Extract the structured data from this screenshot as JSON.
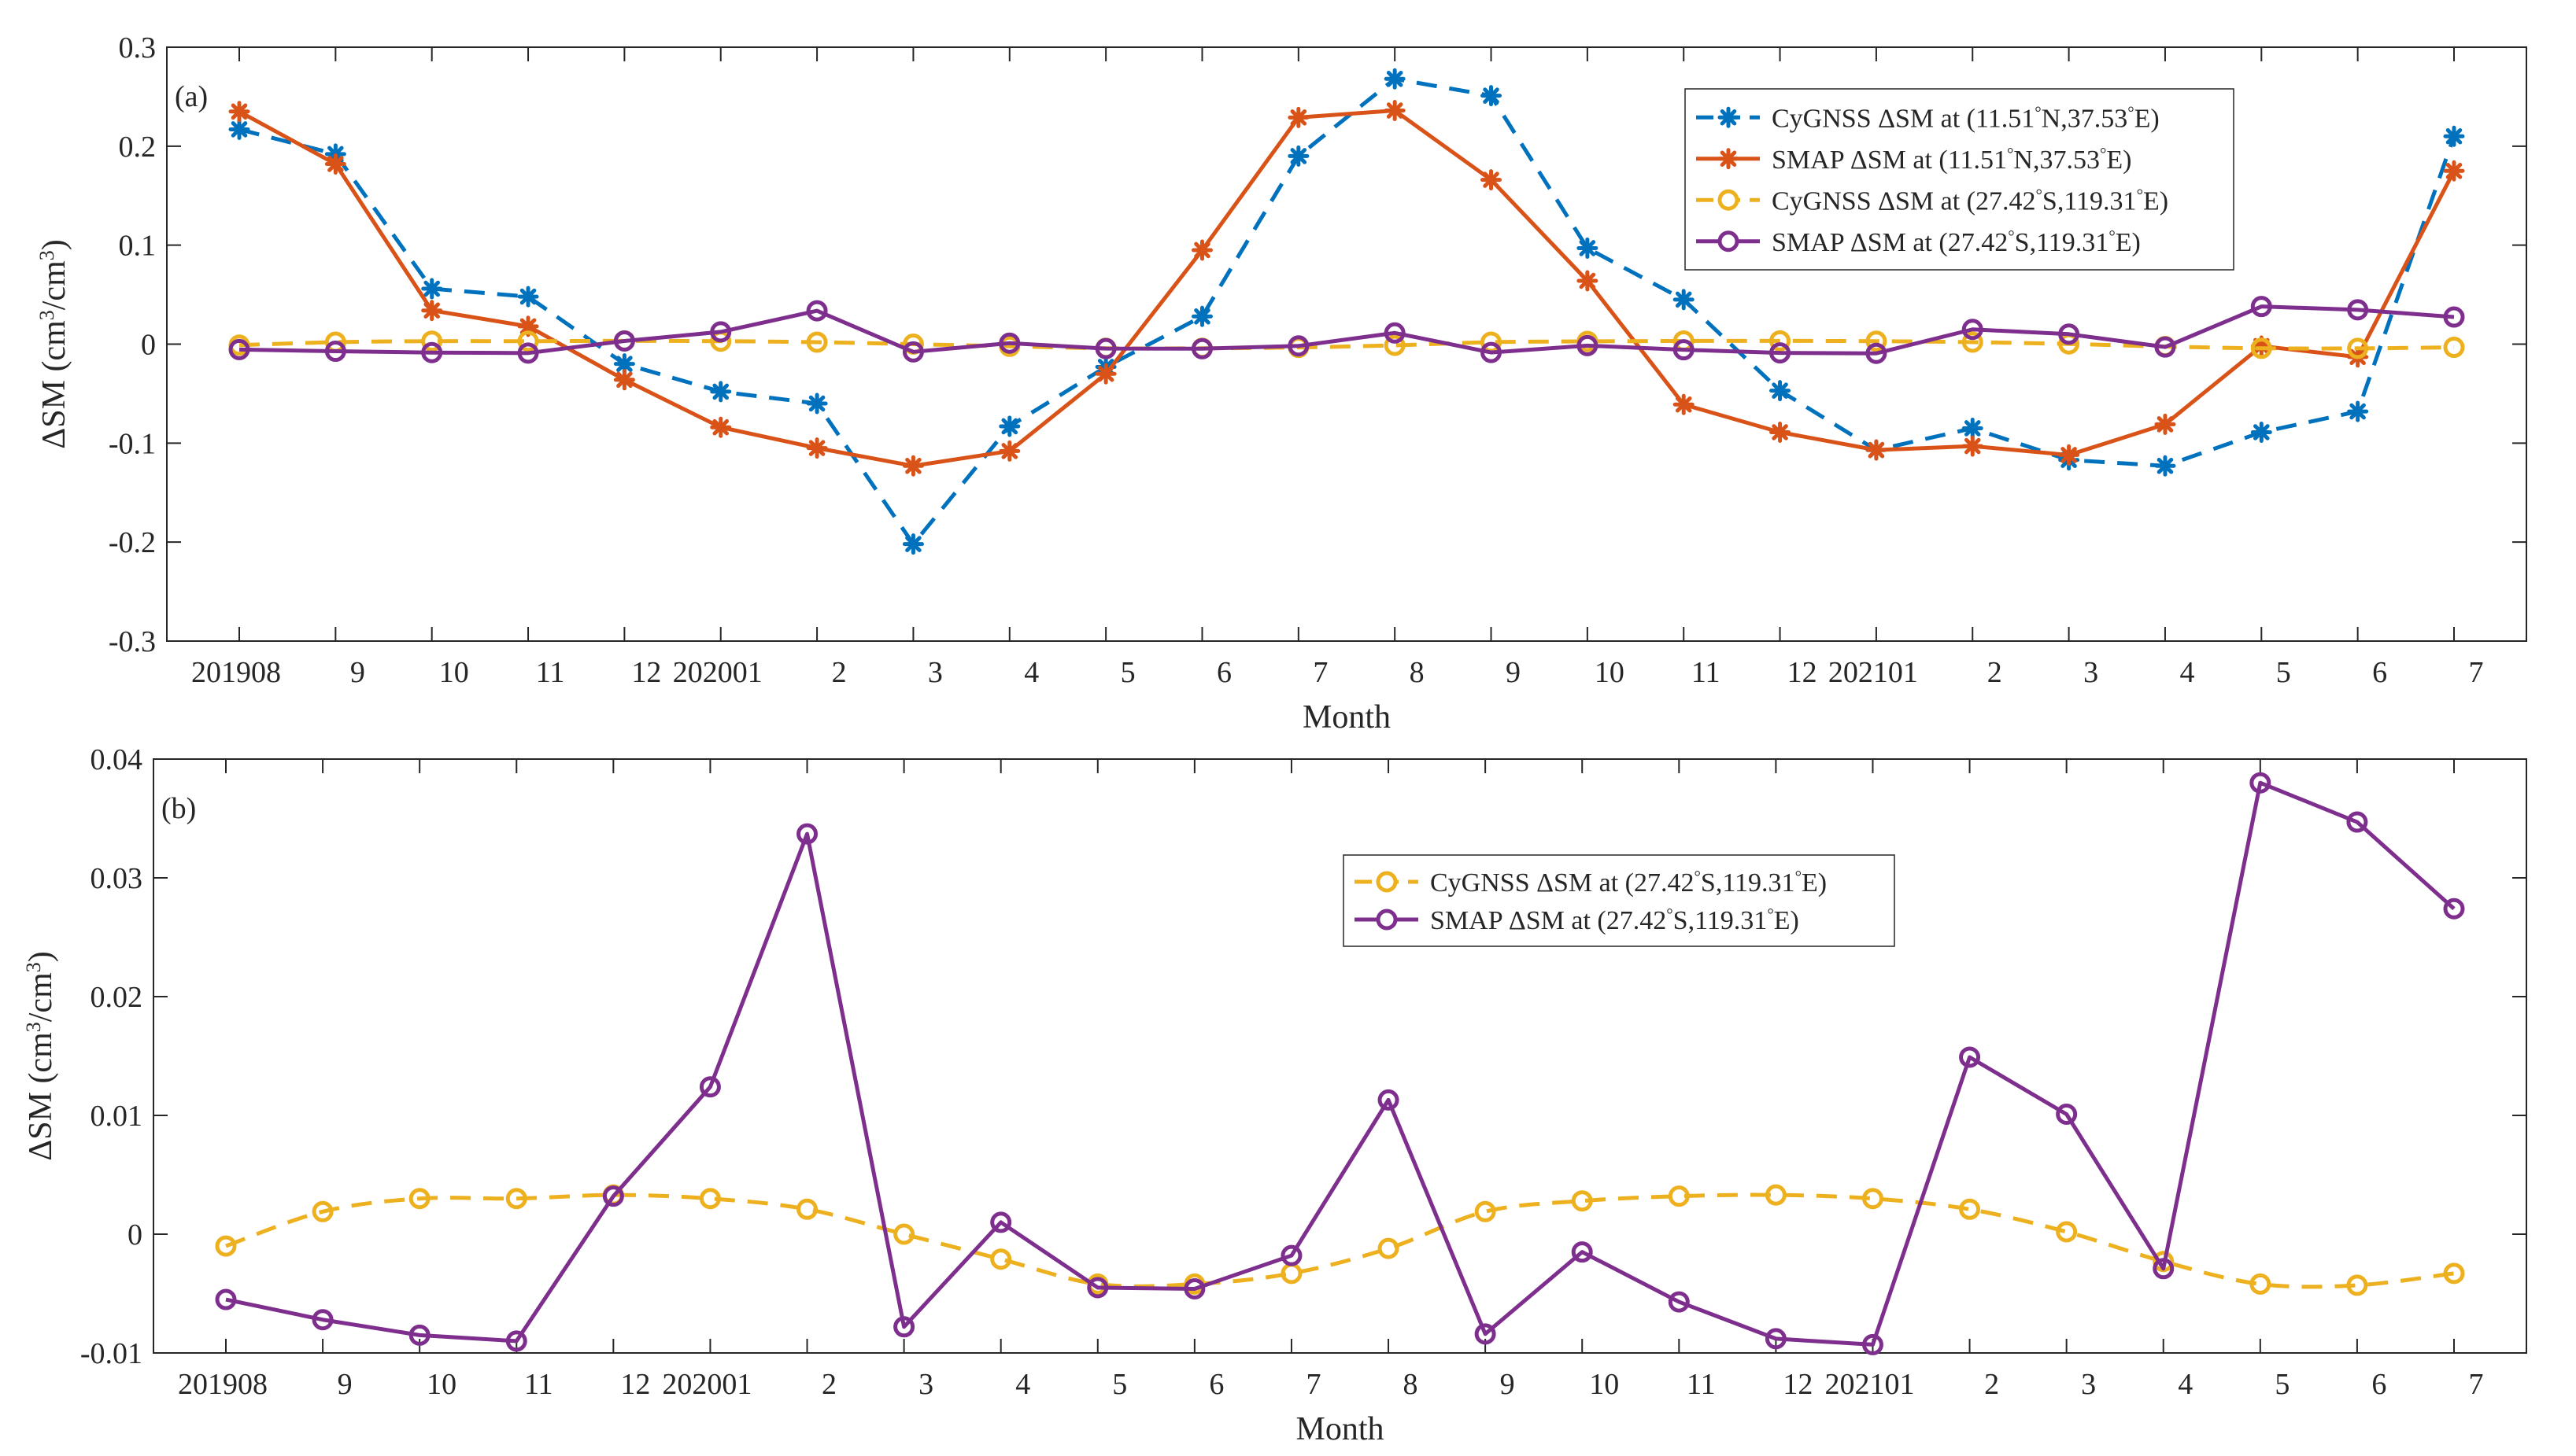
{
  "figure": {
    "xlabel": "Month",
    "ylabel_prefix": "ΔSM (cm",
    "ylabel_mid": "/cm",
    "ylabel_suffix": ")",
    "ylabel_sup": "3",
    "colors": {
      "cygnss_a": "#0072BD",
      "smap_a": "#D95319",
      "cygnss_b": "#EDB120",
      "smap_b": "#7E2F8E",
      "axis": "#262626",
      "background": "#ffffff"
    }
  },
  "chart_data": [
    {
      "type": "line",
      "panel_label": "(a)",
      "categories": [
        "201908",
        "9",
        "10",
        "11",
        "12",
        "202001",
        "2",
        "3",
        "4",
        "5",
        "6",
        "7",
        "8",
        "9",
        "10",
        "11",
        "12",
        "202101",
        "2",
        "3",
        "4",
        "5",
        "6",
        "7"
      ],
      "xlabel": "Month",
      "ylabel": "ΔSM (cm3/cm3)",
      "ylim": [
        -0.3,
        0.3
      ],
      "yticks": [
        -0.3,
        -0.2,
        -0.1,
        0,
        0.1,
        0.2,
        0.3
      ],
      "ytick_labels": [
        "-0.3",
        "-0.2",
        "-0.1",
        "0",
        "0.1",
        "0.2",
        "0.3"
      ],
      "grid": false,
      "legend_position": "top-right",
      "series": [
        {
          "name_prefix": "CyGNSS ΔSM at (11.51",
          "name_suffix": "N,37.53",
          "name_end": "E)",
          "color": "#0072BD",
          "style": "dashed",
          "marker": "asterisk",
          "values": [
            0.217,
            0.192,
            0.056,
            0.048,
            -0.02,
            -0.048,
            -0.06,
            -0.202,
            -0.083,
            -0.023,
            0.028,
            0.19,
            0.268,
            0.251,
            0.097,
            0.045,
            -0.047,
            -0.107,
            -0.085,
            -0.117,
            -0.123,
            -0.089,
            -0.068,
            0.21
          ]
        },
        {
          "name_prefix": "SMAP ΔSM at (11.51",
          "name_suffix": "N,37.53",
          "name_end": "E)",
          "color": "#D95319",
          "style": "solid",
          "marker": "asterisk",
          "values": [
            0.235,
            0.182,
            0.034,
            0.018,
            -0.036,
            -0.084,
            -0.105,
            -0.123,
            -0.108,
            -0.03,
            0.095,
            0.229,
            0.236,
            0.166,
            0.064,
            -0.061,
            -0.089,
            -0.107,
            -0.103,
            -0.112,
            -0.081,
            -0.002,
            -0.013,
            0.175
          ]
        },
        {
          "name_prefix": "CyGNSS ΔSM at (27.42",
          "name_suffix": "S,119.31",
          "name_end": "E)",
          "color": "#EDB120",
          "style": "dashed",
          "marker": "circle",
          "values": [
            -0.001,
            0.002,
            0.003,
            0.003,
            0.0033,
            0.003,
            0.002,
            0.0,
            -0.0022,
            -0.0042,
            -0.0042,
            -0.0033,
            -0.0012,
            0.002,
            0.0028,
            0.0032,
            0.0033,
            0.003,
            0.002,
            0.0002,
            -0.0024,
            -0.0042,
            -0.0043,
            -0.0032
          ]
        },
        {
          "name_prefix": "SMAP ΔSM at (27.42",
          "name_suffix": "S,119.31",
          "name_end": "E)",
          "color": "#7E2F8E",
          "style": "solid",
          "marker": "circle",
          "values": [
            -0.0055,
            -0.0072,
            -0.0085,
            -0.009,
            0.0032,
            0.0124,
            0.0337,
            -0.0078,
            0.001,
            -0.0045,
            -0.0046,
            -0.0018,
            0.0113,
            -0.0084,
            -0.0015,
            -0.0057,
            -0.0088,
            -0.0093,
            0.0149,
            0.0101,
            -0.0029,
            0.038,
            0.0347,
            0.0274
          ]
        }
      ]
    },
    {
      "type": "line",
      "panel_label": "(b)",
      "categories": [
        "201908",
        "9",
        "10",
        "11",
        "12",
        "202001",
        "2",
        "3",
        "4",
        "5",
        "6",
        "7",
        "8",
        "9",
        "10",
        "11",
        "12",
        "202101",
        "2",
        "3",
        "4",
        "5",
        "6",
        "7"
      ],
      "xlabel": "Month",
      "ylabel": "ΔSM (cm3/cm3)",
      "ylim": [
        -0.01,
        0.04
      ],
      "yticks": [
        -0.01,
        0,
        0.01,
        0.02,
        0.03,
        0.04
      ],
      "ytick_labels": [
        "-0.01",
        "0",
        "0.01",
        "0.02",
        "0.03",
        "0.04"
      ],
      "grid": false,
      "legend_position": "top-center",
      "series": [
        {
          "name_prefix": "CyGNSS ΔSM at (27.42",
          "name_suffix": "S,119.31",
          "name_end": "E)",
          "color": "#EDB120",
          "style": "dashed",
          "marker": "circle",
          "values": [
            -0.001,
            0.0019,
            0.003,
            0.003,
            0.0033,
            0.003,
            0.0021,
            0.0,
            -0.0021,
            -0.0042,
            -0.0042,
            -0.0033,
            -0.0012,
            0.0019,
            0.0028,
            0.0032,
            0.0033,
            0.003,
            0.0021,
            0.0002,
            -0.0023,
            -0.0042,
            -0.0043,
            -0.0033
          ]
        },
        {
          "name_prefix": "SMAP ΔSM at (27.42",
          "name_suffix": "S,119.31",
          "name_end": "E)",
          "color": "#7E2F8E",
          "style": "solid",
          "marker": "circle",
          "values": [
            -0.0055,
            -0.0072,
            -0.0085,
            -0.009,
            0.0032,
            0.0124,
            0.0337,
            -0.0078,
            0.001,
            -0.0045,
            -0.0046,
            -0.0018,
            0.0113,
            -0.0084,
            -0.0015,
            -0.0057,
            -0.0088,
            -0.0093,
            0.0149,
            0.0101,
            -0.0029,
            0.038,
            0.0347,
            0.0274
          ]
        }
      ]
    }
  ]
}
